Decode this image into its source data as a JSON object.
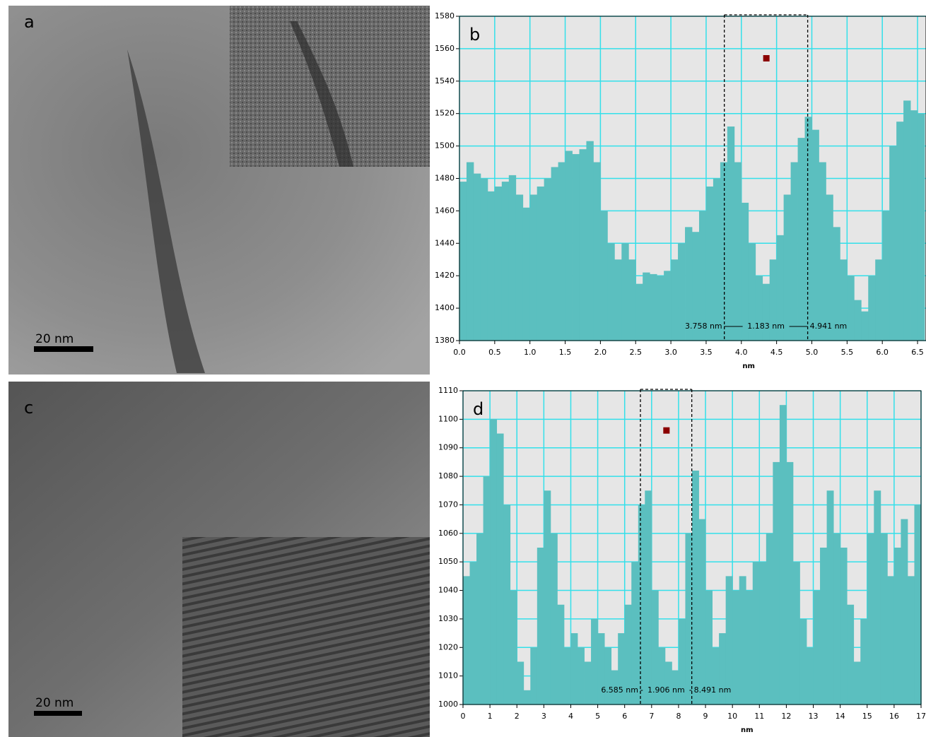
{
  "images": [
    {
      "label": "a",
      "scale_bar": "20 nm"
    },
    {
      "label": "c",
      "scale_bar": "20 nm"
    }
  ],
  "chart_data": [
    {
      "type": "bar",
      "label": "b",
      "x_label": "nm",
      "color": "#5bbfbf",
      "grid": true,
      "xlim": [
        0,
        6.62
      ],
      "ylim": [
        1380,
        1580
      ],
      "xticks": [
        {
          "value": 0,
          "label": "0.0"
        },
        0.5,
        {
          "value": 1,
          "label": "1.0"
        },
        1.5,
        {
          "value": 2,
          "label": "2.0"
        },
        2.5,
        {
          "value": 3,
          "label": "3.0"
        },
        3.5,
        {
          "value": 4,
          "label": "4.0"
        },
        4.5,
        {
          "value": 5,
          "label": "5.0"
        },
        5.5,
        {
          "value": 6,
          "label": "6.0"
        },
        6.5
      ],
      "yticks": [
        1380,
        1400,
        1420,
        1440,
        1460,
        1480,
        1500,
        1520,
        1540,
        1560,
        1580
      ],
      "annotations": [
        {
          "value": 3.758,
          "label": "3.758 nm"
        },
        {
          "value": 1.183,
          "label": "1.183 nm"
        },
        {
          "value": 4.941,
          "label": "4.941 nm"
        }
      ],
      "x": [
        0,
        0.1,
        0.2,
        0.3,
        0.4,
        0.5,
        0.6,
        0.7,
        0.8,
        0.9,
        1.0,
        1.1,
        1.2,
        1.3,
        1.4,
        1.5,
        1.6,
        1.7,
        1.8,
        1.9,
        2.0,
        2.1,
        2.2,
        2.3,
        2.4,
        2.5,
        2.6,
        2.7,
        2.8,
        2.9,
        3.0,
        3.1,
        3.2,
        3.3,
        3.4,
        3.5,
        3.6,
        3.7,
        3.8,
        3.9,
        4.0,
        4.1,
        4.2,
        4.3,
        4.4,
        4.5,
        4.6,
        4.7,
        4.8,
        4.9,
        5.0,
        5.1,
        5.2,
        5.3,
        5.4,
        5.5,
        5.6,
        5.7,
        5.8,
        5.9,
        6.0,
        6.1,
        6.2,
        6.3,
        6.4,
        6.5
      ],
      "values": [
        1478,
        1490,
        1483,
        1480,
        1472,
        1475,
        1478,
        1482,
        1470,
        1462,
        1470,
        1475,
        1480,
        1487,
        1490,
        1497,
        1495,
        1498,
        1503,
        1490,
        1460,
        1440,
        1430,
        1440,
        1430,
        1415,
        1422,
        1421,
        1420,
        1423,
        1430,
        1440,
        1450,
        1447,
        1460,
        1475,
        1480,
        1490,
        1512,
        1490,
        1465,
        1440,
        1420,
        1415,
        1430,
        1445,
        1470,
        1490,
        1505,
        1518,
        1510,
        1490,
        1470,
        1450,
        1430,
        1420,
        1405,
        1398,
        1420,
        1430,
        1460,
        1500,
        1515,
        1528,
        1522,
        1520
      ]
    },
    {
      "type": "bar",
      "label": "d",
      "x_label": "nm",
      "color": "#5bbfbf",
      "grid": true,
      "xlim": [
        0,
        17
      ],
      "ylim": [
        1000,
        1110
      ],
      "xticks": [
        0,
        1,
        2,
        3,
        4,
        5,
        6,
        7,
        8,
        9,
        10,
        11,
        12,
        13,
        14,
        15,
        16,
        17
      ],
      "yticks": [
        1000,
        1010,
        1020,
        1030,
        1040,
        1050,
        1060,
        1070,
        1080,
        1090,
        1100,
        1110
      ],
      "annotations": [
        {
          "value": 6.585,
          "label": "6.585 nm"
        },
        {
          "value": 1.906,
          "label": "1.906 nm"
        },
        {
          "value": 8.491,
          "label": "8.491 nm"
        }
      ],
      "x": [
        0,
        0.25,
        0.5,
        0.75,
        1,
        1.25,
        1.5,
        1.75,
        2,
        2.25,
        2.5,
        2.75,
        3,
        3.25,
        3.5,
        3.75,
        4,
        4.25,
        4.5,
        4.75,
        5,
        5.25,
        5.5,
        5.75,
        6,
        6.25,
        6.5,
        6.75,
        7,
        7.25,
        7.5,
        7.75,
        8,
        8.25,
        8.5,
        8.75,
        9,
        9.25,
        9.5,
        9.75,
        10,
        10.25,
        10.5,
        10.75,
        11,
        11.25,
        11.5,
        11.75,
        12,
        12.25,
        12.5,
        12.75,
        13,
        13.25,
        13.5,
        13.75,
        14,
        14.25,
        14.5,
        14.75,
        15,
        15.25,
        15.5,
        15.75,
        16,
        16.25,
        16.5,
        16.75
      ],
      "values": [
        1045,
        1050,
        1060,
        1080,
        1100,
        1095,
        1070,
        1040,
        1015,
        1005,
        1020,
        1055,
        1075,
        1060,
        1035,
        1020,
        1025,
        1020,
        1015,
        1030,
        1025,
        1020,
        1012,
        1025,
        1035,
        1050,
        1070,
        1075,
        1040,
        1020,
        1015,
        1012,
        1030,
        1060,
        1082,
        1065,
        1040,
        1020,
        1025,
        1045,
        1040,
        1045,
        1040,
        1050,
        1050,
        1060,
        1085,
        1105,
        1085,
        1050,
        1030,
        1020,
        1040,
        1055,
        1075,
        1060,
        1055,
        1035,
        1015,
        1030,
        1060,
        1075,
        1060,
        1045,
        1055,
        1065,
        1045,
        1070
      ]
    }
  ]
}
